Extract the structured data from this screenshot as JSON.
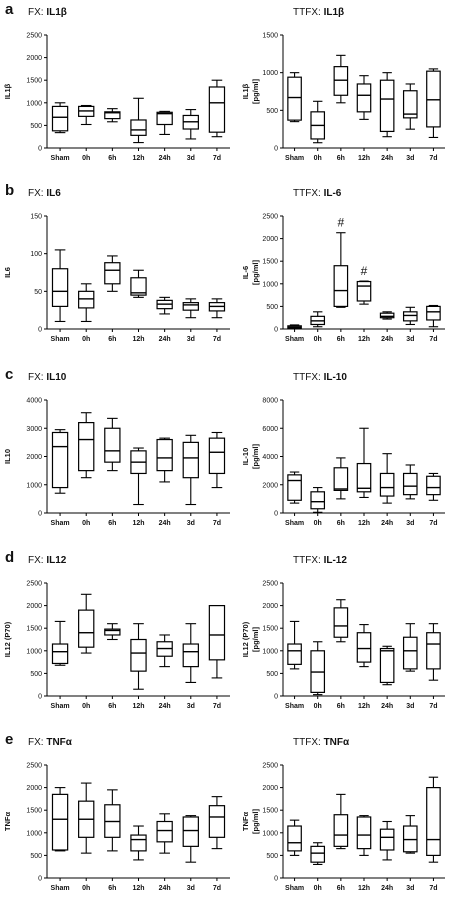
{
  "categories": [
    "Sham",
    "0h",
    "6h",
    "12h",
    "24h",
    "3d",
    "7d"
  ],
  "panels": [
    {
      "letter": "a",
      "charts": [
        {
          "title_prefix": "FX: ",
          "title_main": "IL1β",
          "ylabel": [
            "IL1β"
          ],
          "yticks": [
            0,
            500,
            1000,
            1500,
            2000,
            2500
          ],
          "ylim": [
            0,
            2500
          ],
          "boxes": [
            {
              "min": 340,
              "q1": 380,
              "med": 680,
              "q3": 920,
              "max": 1000
            },
            {
              "min": 520,
              "q1": 700,
              "med": 820,
              "q3": 920,
              "max": 940
            },
            {
              "min": 580,
              "q1": 650,
              "med": 780,
              "q3": 800,
              "max": 870
            },
            {
              "min": 120,
              "q1": 280,
              "med": 400,
              "q3": 620,
              "max": 1100
            },
            {
              "min": 300,
              "q1": 520,
              "med": 760,
              "q3": 790,
              "max": 810
            },
            {
              "min": 200,
              "q1": 420,
              "med": 580,
              "q3": 720,
              "max": 850
            },
            {
              "min": 250,
              "q1": 350,
              "med": 1000,
              "q3": 1350,
              "max": 1500
            }
          ],
          "marks": []
        },
        {
          "title_prefix": "TTFX: ",
          "title_main": "IL1β",
          "ylabel": [
            "IL1β",
            "[pg/ml]"
          ],
          "yticks": [
            0,
            500,
            1000,
            1500
          ],
          "ylim": [
            0,
            1500
          ],
          "boxes": [
            {
              "min": 350,
              "q1": 370,
              "med": 670,
              "q3": 940,
              "max": 1000
            },
            {
              "min": 70,
              "q1": 120,
              "med": 300,
              "q3": 480,
              "max": 620
            },
            {
              "min": 600,
              "q1": 700,
              "med": 900,
              "q3": 1080,
              "max": 1230
            },
            {
              "min": 380,
              "q1": 480,
              "med": 700,
              "q3": 850,
              "max": 960
            },
            {
              "min": 150,
              "q1": 220,
              "med": 650,
              "q3": 900,
              "max": 1000
            },
            {
              "min": 250,
              "q1": 400,
              "med": 450,
              "q3": 760,
              "max": 850
            },
            {
              "min": 140,
              "q1": 280,
              "med": 640,
              "q3": 1020,
              "max": 1050
            }
          ],
          "marks": []
        }
      ]
    },
    {
      "letter": "b",
      "charts": [
        {
          "title_prefix": "FX: ",
          "title_main": "IL6",
          "ylabel": [
            "IL6"
          ],
          "yticks": [
            0,
            50,
            100,
            150
          ],
          "ylim": [
            0,
            150
          ],
          "boxes": [
            {
              "min": 10,
              "q1": 30,
              "med": 50,
              "q3": 80,
              "max": 105
            },
            {
              "min": 10,
              "q1": 28,
              "med": 40,
              "q3": 50,
              "max": 60
            },
            {
              "min": 50,
              "q1": 60,
              "med": 78,
              "q3": 88,
              "max": 97
            },
            {
              "min": 42,
              "q1": 45,
              "med": 48,
              "q3": 68,
              "max": 78
            },
            {
              "min": 20,
              "q1": 27,
              "med": 33,
              "q3": 38,
              "max": 42
            },
            {
              "min": 15,
              "q1": 25,
              "med": 32,
              "q3": 35,
              "max": 40
            },
            {
              "min": 15,
              "q1": 24,
              "med": 30,
              "q3": 35,
              "max": 40
            }
          ],
          "marks": []
        },
        {
          "title_prefix": "TTFX: ",
          "title_main": "IL-6",
          "ylabel": [
            "IL-6",
            "[pg/ml]"
          ],
          "yticks": [
            0,
            500,
            1000,
            1500,
            2000,
            2500
          ],
          "ylim": [
            0,
            2500
          ],
          "boxes": [
            {
              "min": 10,
              "q1": 20,
              "med": 40,
              "q3": 70,
              "max": 90
            },
            {
              "min": 50,
              "q1": 100,
              "med": 180,
              "q3": 280,
              "max": 380
            },
            {
              "min": 480,
              "q1": 500,
              "med": 850,
              "q3": 1400,
              "max": 2130
            },
            {
              "min": 550,
              "q1": 620,
              "med": 950,
              "q3": 1050,
              "max": 1060
            },
            {
              "min": 220,
              "q1": 250,
              "med": 280,
              "q3": 350,
              "max": 380
            },
            {
              "min": 100,
              "q1": 180,
              "med": 300,
              "q3": 380,
              "max": 480
            },
            {
              "min": 50,
              "q1": 200,
              "med": 380,
              "q3": 500,
              "max": 520
            }
          ],
          "marks": [
            {
              "index": 2,
              "text": "#"
            },
            {
              "index": 3,
              "text": "#"
            }
          ]
        }
      ]
    },
    {
      "letter": "c",
      "charts": [
        {
          "title_prefix": "FX: ",
          "title_main": "IL10",
          "ylabel": [
            "IL10"
          ],
          "yticks": [
            0,
            1000,
            2000,
            3000,
            4000
          ],
          "ylim": [
            0,
            4000
          ],
          "boxes": [
            {
              "min": 700,
              "q1": 900,
              "med": 2350,
              "q3": 2850,
              "max": 2950
            },
            {
              "min": 1250,
              "q1": 1500,
              "med": 2600,
              "q3": 3200,
              "max": 3550
            },
            {
              "min": 1500,
              "q1": 1800,
              "med": 2200,
              "q3": 3000,
              "max": 3350
            },
            {
              "min": 300,
              "q1": 1400,
              "med": 1800,
              "q3": 2200,
              "max": 2300
            },
            {
              "min": 1100,
              "q1": 1500,
              "med": 1950,
              "q3": 2600,
              "max": 2650
            },
            {
              "min": 300,
              "q1": 1250,
              "med": 1950,
              "q3": 2500,
              "max": 2750
            },
            {
              "min": 900,
              "q1": 1400,
              "med": 2150,
              "q3": 2650,
              "max": 2850
            }
          ],
          "marks": []
        },
        {
          "title_prefix": "TTFX: ",
          "title_main": "IL-10",
          "ylabel": [
            "IL-10",
            "[pg/ml]"
          ],
          "yticks": [
            0,
            2000,
            4000,
            6000,
            8000
          ],
          "ylim": [
            0,
            8000
          ],
          "boxes": [
            {
              "min": 700,
              "q1": 900,
              "med": 2300,
              "q3": 2700,
              "max": 2900
            },
            {
              "min": 50,
              "q1": 300,
              "med": 800,
              "q3": 1500,
              "max": 1800
            },
            {
              "min": 1000,
              "q1": 1600,
              "med": 1700,
              "q3": 3200,
              "max": 3900
            },
            {
              "min": 1100,
              "q1": 1500,
              "med": 1750,
              "q3": 3500,
              "max": 6000
            },
            {
              "min": 700,
              "q1": 1200,
              "med": 1800,
              "q3": 2800,
              "max": 4200
            },
            {
              "min": 1000,
              "q1": 1300,
              "med": 1900,
              "q3": 2800,
              "max": 3400
            },
            {
              "min": 900,
              "q1": 1300,
              "med": 1800,
              "q3": 2600,
              "max": 2800
            }
          ],
          "marks": []
        }
      ]
    },
    {
      "letter": "d",
      "charts": [
        {
          "title_prefix": "FX: ",
          "title_main": "IL12",
          "ylabel": [
            "IL12 (P70)"
          ],
          "yticks": [
            0,
            500,
            1000,
            1500,
            2000,
            2500
          ],
          "ylim": [
            0,
            2500
          ],
          "boxes": [
            {
              "min": 680,
              "q1": 720,
              "med": 980,
              "q3": 1150,
              "max": 1650
            },
            {
              "min": 950,
              "q1": 1080,
              "med": 1400,
              "q3": 1900,
              "max": 2250
            },
            {
              "min": 1250,
              "q1": 1350,
              "med": 1450,
              "q3": 1480,
              "max": 1600
            },
            {
              "min": 150,
              "q1": 550,
              "med": 950,
              "q3": 1250,
              "max": 1600
            },
            {
              "min": 650,
              "q1": 880,
              "med": 1050,
              "q3": 1200,
              "max": 1350
            },
            {
              "min": 300,
              "q1": 650,
              "med": 980,
              "q3": 1150,
              "max": 1600
            },
            {
              "min": 400,
              "q1": 800,
              "med": 1350,
              "q3": 2000,
              "max": 2000
            }
          ],
          "marks": []
        },
        {
          "title_prefix": "TTFX: ",
          "title_main": "IL-12",
          "ylabel": [
            "IL12 (P70)",
            "[pg/ml]"
          ],
          "yticks": [
            0,
            500,
            1000,
            1500,
            2000,
            2500
          ],
          "ylim": [
            0,
            2500
          ],
          "boxes": [
            {
              "min": 600,
              "q1": 700,
              "med": 1000,
              "q3": 1150,
              "max": 1650
            },
            {
              "min": 30,
              "q1": 80,
              "med": 530,
              "q3": 1000,
              "max": 1200
            },
            {
              "min": 1200,
              "q1": 1300,
              "med": 1550,
              "q3": 1950,
              "max": 2130
            },
            {
              "min": 650,
              "q1": 750,
              "med": 1050,
              "q3": 1400,
              "max": 1580
            },
            {
              "min": 250,
              "q1": 300,
              "med": 1000,
              "q3": 1050,
              "max": 1100
            },
            {
              "min": 550,
              "q1": 600,
              "med": 1000,
              "q3": 1300,
              "max": 1600
            },
            {
              "min": 350,
              "q1": 600,
              "med": 1150,
              "q3": 1400,
              "max": 1600
            }
          ],
          "marks": []
        }
      ]
    },
    {
      "letter": "e",
      "charts": [
        {
          "title_prefix": "FX: ",
          "title_main": "TNFα",
          "ylabel": [
            "TNFα"
          ],
          "yticks": [
            0,
            500,
            1000,
            1500,
            2000,
            2500
          ],
          "ylim": [
            0,
            2500
          ],
          "boxes": [
            {
              "min": 600,
              "q1": 620,
              "med": 1300,
              "q3": 1850,
              "max": 2000
            },
            {
              "min": 550,
              "q1": 900,
              "med": 1300,
              "q3": 1700,
              "max": 2100
            },
            {
              "min": 600,
              "q1": 900,
              "med": 1250,
              "q3": 1620,
              "max": 1950
            },
            {
              "min": 400,
              "q1": 600,
              "med": 850,
              "q3": 950,
              "max": 1150
            },
            {
              "min": 550,
              "q1": 800,
              "med": 1050,
              "q3": 1250,
              "max": 1420
            },
            {
              "min": 350,
              "q1": 700,
              "med": 1050,
              "q3": 1350,
              "max": 1380
            },
            {
              "min": 650,
              "q1": 900,
              "med": 1350,
              "q3": 1600,
              "max": 1800
            }
          ],
          "marks": []
        },
        {
          "title_prefix": "TTFX: ",
          "title_main": "TNFα",
          "ylabel": [
            "TNFα",
            "[pg/ml]"
          ],
          "yticks": [
            0,
            500,
            1000,
            1500,
            2000,
            2500
          ],
          "ylim": [
            0,
            2500
          ],
          "boxes": [
            {
              "min": 500,
              "q1": 600,
              "med": 780,
              "q3": 1150,
              "max": 1280
            },
            {
              "min": 300,
              "q1": 350,
              "med": 550,
              "q3": 700,
              "max": 780
            },
            {
              "min": 650,
              "q1": 700,
              "med": 950,
              "q3": 1400,
              "max": 1850
            },
            {
              "min": 500,
              "q1": 650,
              "med": 950,
              "q3": 1350,
              "max": 1380
            },
            {
              "min": 400,
              "q1": 620,
              "med": 900,
              "q3": 1080,
              "max": 1250
            },
            {
              "min": 550,
              "q1": 580,
              "med": 850,
              "q3": 1150,
              "max": 1380
            },
            {
              "min": 350,
              "q1": 500,
              "med": 850,
              "q3": 2000,
              "max": 2230
            }
          ],
          "marks": []
        }
      ]
    }
  ]
}
